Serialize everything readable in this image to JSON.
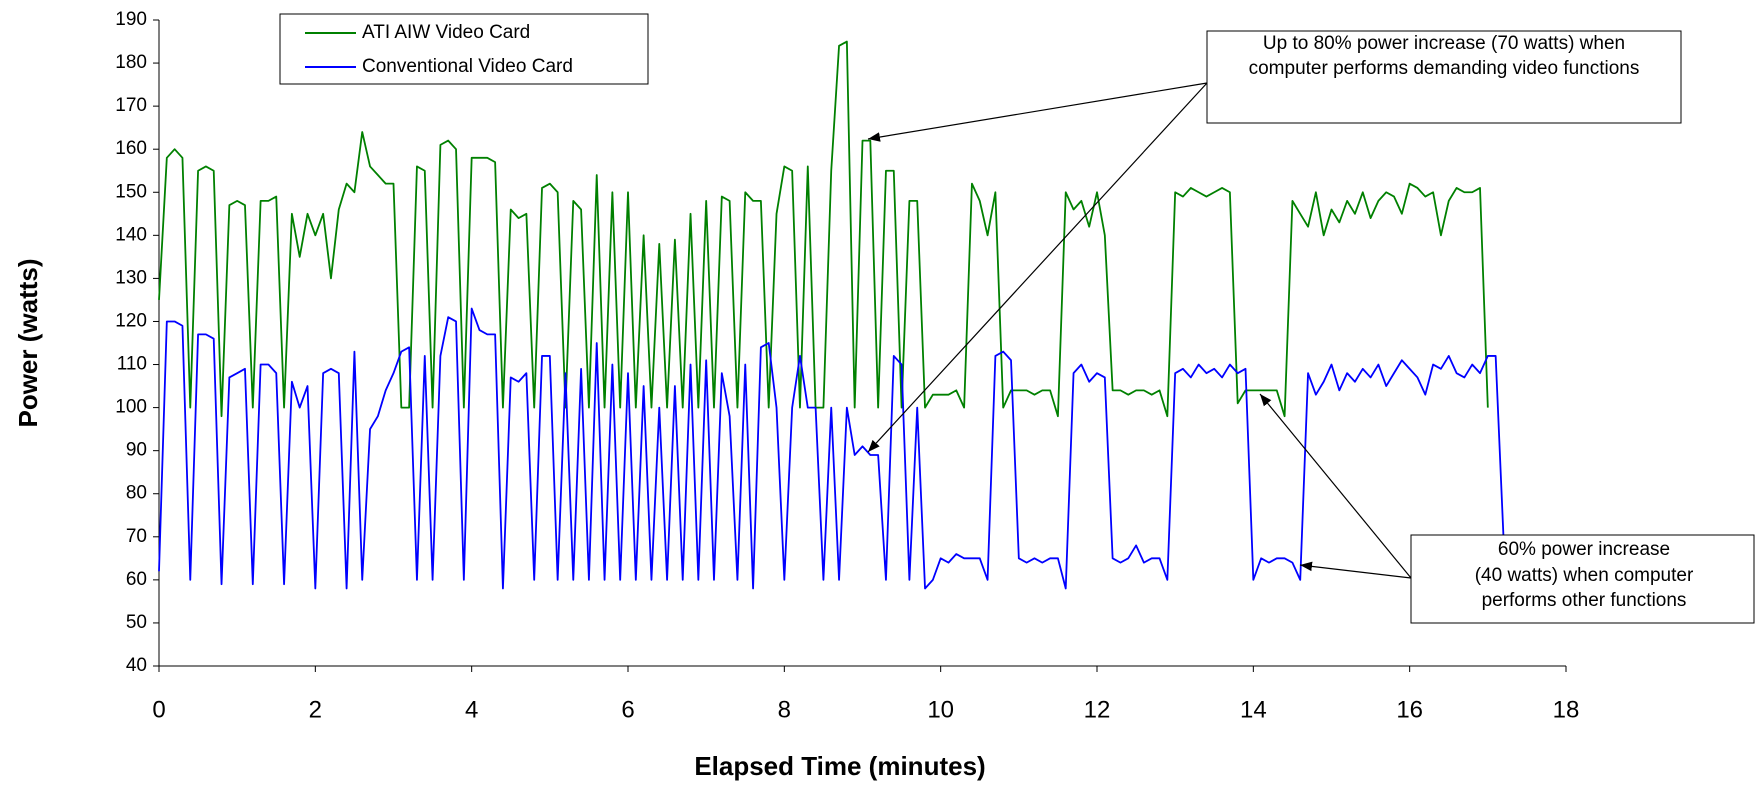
{
  "chart_data": {
    "type": "line",
    "x_label": "Elapsed Time (minutes)",
    "y_label": "Power (watts)",
    "x": [
      0,
      0.1,
      0.2,
      0.3,
      0.4,
      0.5,
      0.6,
      0.7,
      0.8,
      0.9,
      1,
      1.1,
      1.2,
      1.3,
      1.4,
      1.5,
      1.6,
      1.7,
      1.8,
      1.9,
      2,
      2.1,
      2.2,
      2.3,
      2.4,
      2.5,
      2.6,
      2.7,
      2.8,
      2.9,
      3,
      3.1,
      3.2,
      3.3,
      3.4,
      3.5,
      3.6,
      3.7,
      3.8,
      3.9,
      4,
      4.1,
      4.2,
      4.3,
      4.4,
      4.5,
      4.6,
      4.7,
      4.8,
      4.9,
      5,
      5.1,
      5.2,
      5.3,
      5.4,
      5.5,
      5.6,
      5.7,
      5.8,
      5.9,
      6,
      6.1,
      6.2,
      6.3,
      6.4,
      6.5,
      6.6,
      6.7,
      6.8,
      6.9,
      7,
      7.1,
      7.2,
      7.3,
      7.4,
      7.5,
      7.6,
      7.7,
      7.8,
      7.9,
      8,
      8.1,
      8.2,
      8.3,
      8.4,
      8.5,
      8.6,
      8.7,
      8.8,
      8.9,
      9,
      9.1,
      9.2,
      9.3,
      9.4,
      9.5,
      9.6,
      9.7,
      9.8,
      9.9,
      10,
      10.1,
      10.2,
      10.3,
      10.4,
      10.5,
      10.6,
      10.7,
      10.8,
      10.9,
      11,
      11.1,
      11.2,
      11.3,
      11.4,
      11.5,
      11.6,
      11.7,
      11.8,
      11.9,
      12,
      12.1,
      12.2,
      12.3,
      12.4,
      12.5,
      12.6,
      12.7,
      12.8,
      12.9,
      13,
      13.1,
      13.2,
      13.3,
      13.4,
      13.5,
      13.6,
      13.7,
      13.8,
      13.9,
      14,
      14.1,
      14.2,
      14.3,
      14.4,
      14.5,
      14.6,
      14.7,
      14.8,
      14.9,
      15,
      15.1,
      15.2,
      15.3,
      15.4,
      15.5,
      15.6,
      15.7,
      15.8,
      15.9,
      16,
      16.1,
      16.2,
      16.3,
      16.4,
      16.5,
      16.6,
      16.7,
      16.8,
      16.9,
      17,
      17.1,
      17.2
    ],
    "series": [
      {
        "name": "ATI AIW Video Card",
        "color": "#008000",
        "values": [
          125,
          158,
          160,
          158,
          100,
          155,
          156,
          155,
          98,
          147,
          148,
          147,
          100,
          148,
          148,
          149,
          100,
          145,
          135,
          145,
          140,
          145,
          130,
          146,
          152,
          150,
          164,
          156,
          154,
          152,
          152,
          100,
          100,
          156,
          155,
          100,
          161,
          162,
          160,
          100,
          158,
          158,
          158,
          157,
          100,
          146,
          144,
          145,
          100,
          151,
          152,
          150,
          100,
          148,
          146,
          100,
          154,
          100,
          150,
          100,
          150,
          100,
          140,
          100,
          138,
          100,
          139,
          100,
          145,
          100,
          148,
          100,
          149,
          148,
          100,
          150,
          148,
          148,
          100,
          145,
          156,
          155,
          100,
          156,
          100,
          100,
          155,
          184,
          185,
          100,
          162,
          162,
          100,
          155,
          155,
          100,
          148,
          148,
          100,
          103,
          103,
          103,
          104,
          100,
          152,
          148,
          140,
          150,
          100,
          104,
          104,
          104,
          103,
          104,
          104,
          98,
          150,
          146,
          148,
          142,
          150,
          140,
          104,
          104,
          103,
          104,
          104,
          103,
          104,
          98,
          150,
          149,
          151,
          150,
          149,
          150,
          151,
          150,
          101,
          104,
          104,
          104,
          104,
          104,
          98,
          148,
          145,
          142,
          150,
          140,
          146,
          143,
          148,
          145,
          150,
          144,
          148,
          150,
          149,
          145,
          152,
          151,
          149,
          150,
          140,
          148,
          151,
          150,
          150,
          151,
          100,
          null,
          null
        ]
      },
      {
        "name": "Conventional Video Card",
        "color": "#0000ff",
        "values": [
          62,
          120,
          120,
          119,
          60,
          117,
          117,
          116,
          59,
          107,
          108,
          109,
          59,
          110,
          110,
          108,
          59,
          106,
          100,
          105,
          58,
          108,
          109,
          108,
          58,
          113,
          60,
          95,
          98,
          104,
          108,
          113,
          114,
          60,
          112,
          60,
          112,
          121,
          120,
          60,
          123,
          118,
          117,
          117,
          58,
          107,
          106,
          108,
          60,
          112,
          112,
          60,
          108,
          60,
          109,
          60,
          115,
          60,
          110,
          60,
          108,
          60,
          105,
          60,
          100,
          60,
          105,
          60,
          110,
          60,
          111,
          60,
          108,
          98,
          60,
          110,
          58,
          114,
          115,
          100,
          60,
          100,
          112,
          100,
          100,
          60,
          100,
          60,
          100,
          89,
          91,
          89,
          89,
          60,
          112,
          110,
          60,
          100,
          58,
          60,
          65,
          64,
          66,
          65,
          65,
          65,
          60,
          112,
          113,
          111,
          65,
          64,
          65,
          64,
          65,
          65,
          58,
          108,
          110,
          106,
          108,
          107,
          65,
          64,
          65,
          68,
          64,
          65,
          65,
          60,
          108,
          109,
          107,
          110,
          108,
          109,
          107,
          110,
          108,
          109,
          60,
          65,
          64,
          65,
          65,
          64,
          60,
          108,
          103,
          106,
          110,
          104,
          108,
          106,
          109,
          107,
          110,
          105,
          108,
          111,
          109,
          107,
          103,
          110,
          109,
          112,
          108,
          107,
          110,
          108,
          112,
          112,
          70
        ]
      }
    ],
    "xlim": [
      0,
      18
    ],
    "xticks": [
      0,
      2,
      4,
      6,
      8,
      10,
      12,
      14,
      16,
      18
    ],
    "ylim": [
      40,
      190
    ],
    "yticks": [
      40,
      50,
      60,
      70,
      80,
      90,
      100,
      110,
      120,
      130,
      140,
      150,
      160,
      170,
      180,
      190
    ],
    "grid": false,
    "annotations": [
      [
        "Up to 80% power increase (70 watts) when",
        "computer performs demanding video functions"
      ],
      [
        "60% power increase",
        "(40 watts) when computer",
        "performs other functions"
      ]
    ]
  }
}
